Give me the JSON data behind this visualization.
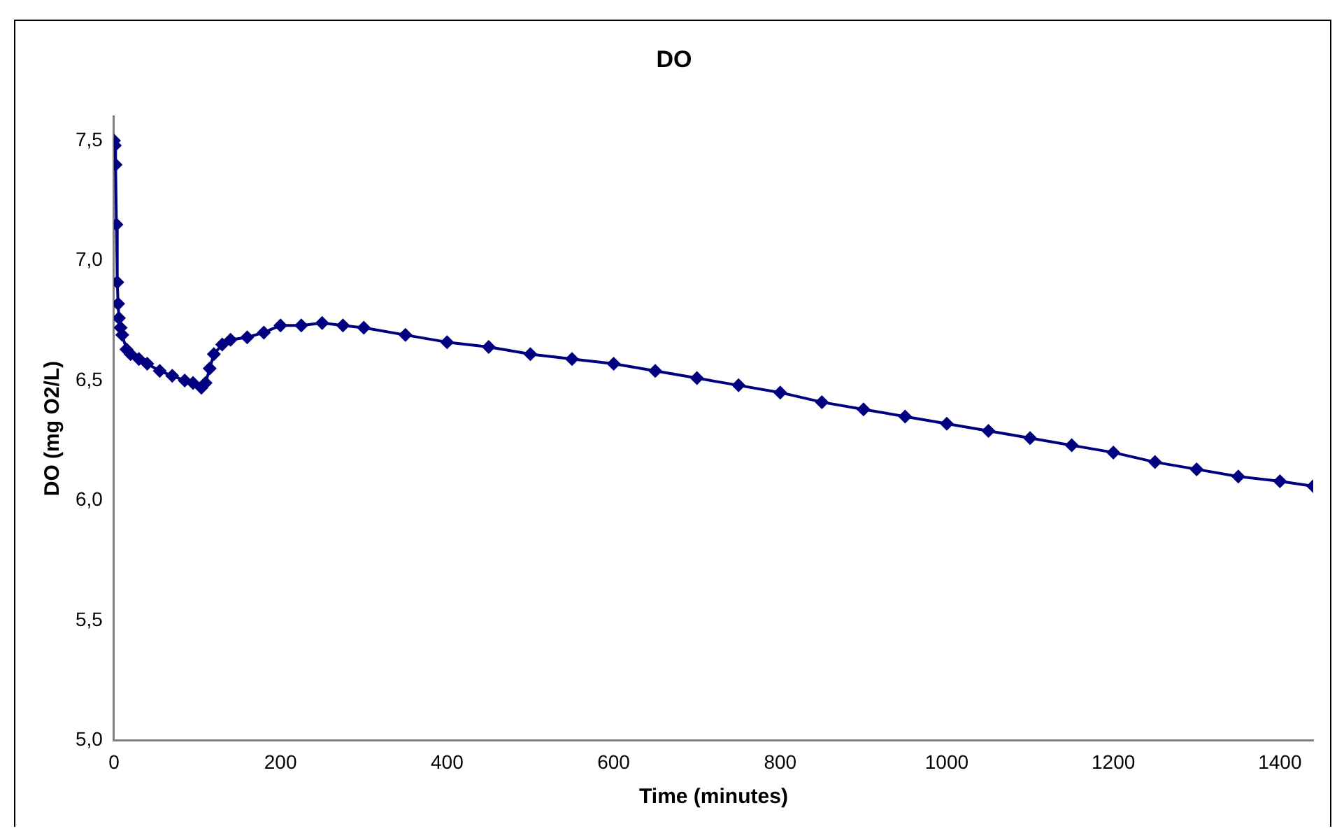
{
  "chart_data": {
    "type": "line",
    "title": "DO",
    "xlabel": "Time (minutes)",
    "ylabel": "DO (mg O2/L)",
    "x": [
      0,
      1,
      2,
      3,
      4,
      5,
      6,
      8,
      10,
      15,
      20,
      30,
      40,
      55,
      70,
      85,
      95,
      105,
      110,
      115,
      120,
      130,
      140,
      160,
      180,
      200,
      225,
      250,
      275,
      300,
      350,
      400,
      450,
      500,
      550,
      600,
      650,
      700,
      750,
      800,
      850,
      900,
      950,
      1000,
      1050,
      1100,
      1150,
      1200,
      1250,
      1300,
      1350,
      1400,
      1440
    ],
    "series": [
      {
        "color": "#000080",
        "values": [
          7.5,
          7.48,
          7.4,
          7.15,
          6.91,
          6.82,
          6.76,
          6.72,
          6.69,
          6.63,
          6.61,
          6.59,
          6.57,
          6.54,
          6.52,
          6.5,
          6.49,
          6.47,
          6.49,
          6.55,
          6.61,
          6.65,
          6.67,
          6.68,
          6.7,
          6.73,
          6.73,
          6.74,
          6.73,
          6.72,
          6.69,
          6.66,
          6.64,
          6.61,
          6.59,
          6.57,
          6.54,
          6.51,
          6.48,
          6.45,
          6.41,
          6.38,
          6.35,
          6.32,
          6.29,
          6.26,
          6.23,
          6.2,
          6.16,
          6.13,
          6.1,
          6.08,
          6.06
        ]
      }
    ],
    "xlim": [
      0,
      1440
    ],
    "xticks": [
      0,
      200,
      400,
      600,
      800,
      1000,
      1200,
      1400
    ],
    "ylim": [
      5,
      7.6
    ],
    "yticks": [
      {
        "value": 5,
        "label": "5,0"
      },
      {
        "value": 5.5,
        "label": "5,5"
      },
      {
        "value": 6,
        "label": "6,0"
      },
      {
        "value": 6.5,
        "label": "6,5"
      },
      {
        "value": 7,
        "label": "7,0"
      },
      {
        "value": 7.5,
        "label": "7,5"
      }
    ],
    "grid": false,
    "legend": false,
    "marker": "diamond",
    "line_style": "solid"
  }
}
